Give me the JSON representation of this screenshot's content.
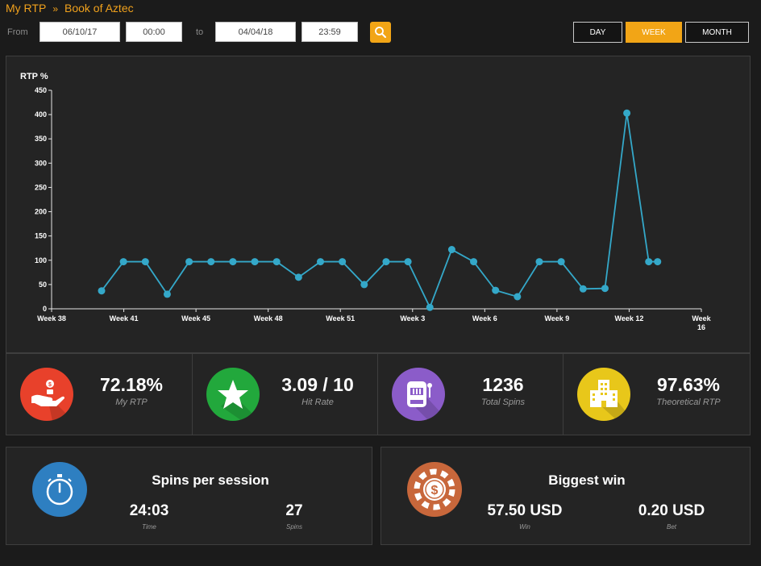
{
  "breadcrumb": {
    "root": "My RTP",
    "separator": "»",
    "current": "Book of Aztec"
  },
  "filters": {
    "from_label": "From",
    "from_date": "06/10/17",
    "from_time": "00:00",
    "to_label": "to",
    "to_date": "04/04/18",
    "to_time": "23:59",
    "periods": [
      "DAY",
      "WEEK",
      "MONTH"
    ],
    "active_period": "WEEK"
  },
  "chart_data": {
    "type": "line",
    "ylabel": "RTP %",
    "ylim": [
      0,
      450
    ],
    "yticks": [
      0,
      50,
      100,
      150,
      200,
      250,
      300,
      350,
      400,
      450
    ],
    "xtick_labels": [
      "Week 38",
      "Week 41",
      "Week 45",
      "Week 48",
      "Week 51",
      "Week 3",
      "Week 6",
      "Week 9",
      "Week 12",
      "Week 16"
    ],
    "series": [
      {
        "values": [
          37,
          97,
          97,
          30,
          97,
          97,
          97,
          97,
          97,
          65,
          97,
          97,
          50,
          97,
          97,
          3,
          122,
          97,
          38,
          25,
          97,
          97,
          41,
          42,
          403,
          97,
          97
        ]
      }
    ],
    "line_color": "#34a8c9",
    "grid": false
  },
  "stats": [
    {
      "value": "72.18%",
      "label": "My RTP",
      "icon": "hand-coin-icon",
      "color": "#e8412b"
    },
    {
      "value": "3.09 / 10",
      "label": "Hit Rate",
      "icon": "star-icon",
      "color": "#22a83c"
    },
    {
      "value": "1236",
      "label": "Total Spins",
      "icon": "slot-machine-icon",
      "color": "#8b5cc9"
    },
    {
      "value": "97.63%",
      "label": "Theoretical RTP",
      "icon": "casino-building-icon",
      "color": "#e8c71a"
    }
  ],
  "session": {
    "title": "Spins per session",
    "time_value": "24:03",
    "time_label": "Time",
    "spins_value": "27",
    "spins_label": "Spins",
    "icon": "stopwatch-icon",
    "color": "#2e7fc1"
  },
  "biggest": {
    "title": "Biggest win",
    "win_value": "57.50 USD",
    "win_label": "Win",
    "bet_value": "0.20 USD",
    "bet_label": "Bet",
    "icon": "casino-chip-icon",
    "color": "#c8673b"
  }
}
